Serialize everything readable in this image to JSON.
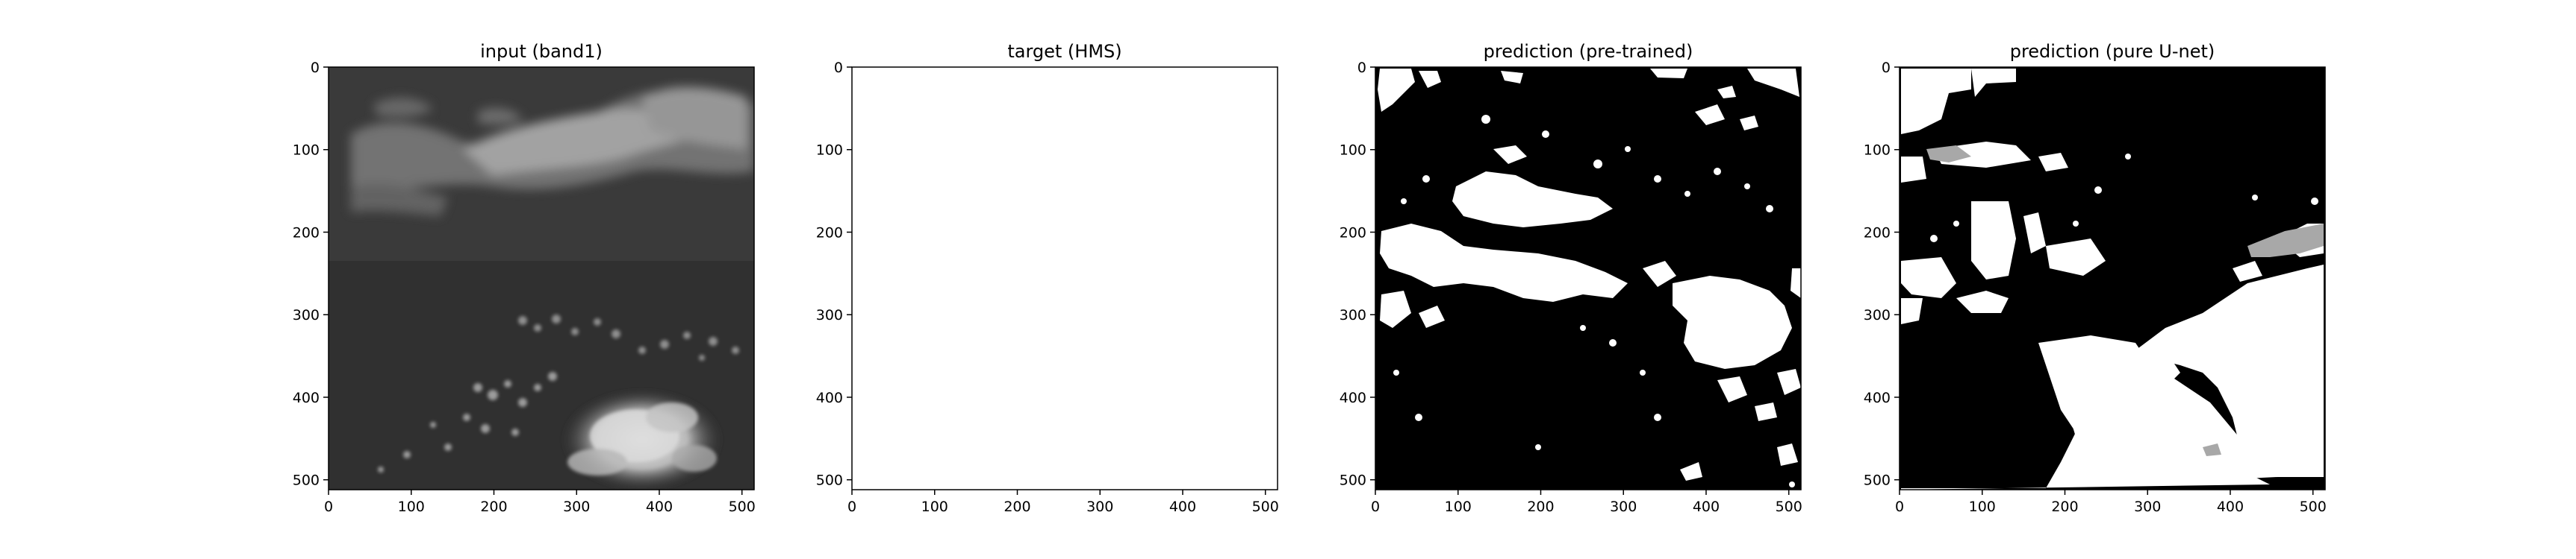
{
  "figure": {
    "panels": [
      {
        "title": "input (band1)",
        "kind": "satellite-grayscale-image",
        "xticks": [
          "0",
          "100",
          "200",
          "300",
          "400",
          "500"
        ],
        "yticks": [
          "0",
          "100",
          "200",
          "300",
          "400",
          "500"
        ],
        "colors": {
          "background": "#313131",
          "clouds": "#cfcfcf"
        }
      },
      {
        "title": "target (HMS)",
        "kind": "blank-white-mask",
        "xticks": [
          "0",
          "100",
          "200",
          "300",
          "400",
          "500"
        ],
        "yticks": [
          "0",
          "100",
          "200",
          "300",
          "400",
          "500"
        ],
        "colors": {
          "background": "#ffffff"
        }
      },
      {
        "title": "prediction (pre-trained)",
        "kind": "binary-mask",
        "xticks": [
          "0",
          "100",
          "200",
          "300",
          "400",
          "500"
        ],
        "yticks": [
          "0",
          "100",
          "200",
          "300",
          "400",
          "500"
        ],
        "colors": {
          "background": "#000000",
          "foreground": "#ffffff"
        }
      },
      {
        "title": "prediction (pure U-net)",
        "kind": "binary-mask-with-gray",
        "xticks": [
          "0",
          "100",
          "200",
          "300",
          "400",
          "500"
        ],
        "yticks": [
          "0",
          "100",
          "200",
          "300",
          "400",
          "500"
        ],
        "colors": {
          "background": "#000000",
          "foreground": "#ffffff",
          "partial": "#a8a8a8"
        }
      }
    ]
  }
}
